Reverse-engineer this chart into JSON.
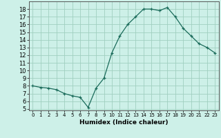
{
  "x": [
    0,
    1,
    2,
    3,
    4,
    5,
    6,
    7,
    8,
    9,
    10,
    11,
    12,
    13,
    14,
    15,
    16,
    17,
    18,
    19,
    20,
    21,
    22,
    23
  ],
  "y": [
    8.0,
    7.8,
    7.7,
    7.5,
    7.0,
    6.7,
    6.5,
    5.2,
    7.7,
    9.0,
    12.3,
    14.5,
    16.0,
    17.0,
    18.0,
    18.0,
    17.8,
    18.2,
    17.0,
    15.5,
    14.5,
    13.5,
    13.0,
    12.3
  ],
  "xlabel": "Humidex (Indice chaleur)",
  "line_color": "#1a6b5a",
  "bg_color": "#cdf0e8",
  "grid_color": "#a0cfc0",
  "xlim": [
    -0.5,
    23.5
  ],
  "ylim": [
    4.8,
    19.0
  ],
  "yticks": [
    5,
    6,
    7,
    8,
    9,
    10,
    11,
    12,
    13,
    14,
    15,
    16,
    17,
    18
  ],
  "xticks": [
    0,
    1,
    2,
    3,
    4,
    5,
    6,
    7,
    8,
    9,
    10,
    11,
    12,
    13,
    14,
    15,
    16,
    17,
    18,
    19,
    20,
    21,
    22,
    23
  ],
  "marker": "+"
}
